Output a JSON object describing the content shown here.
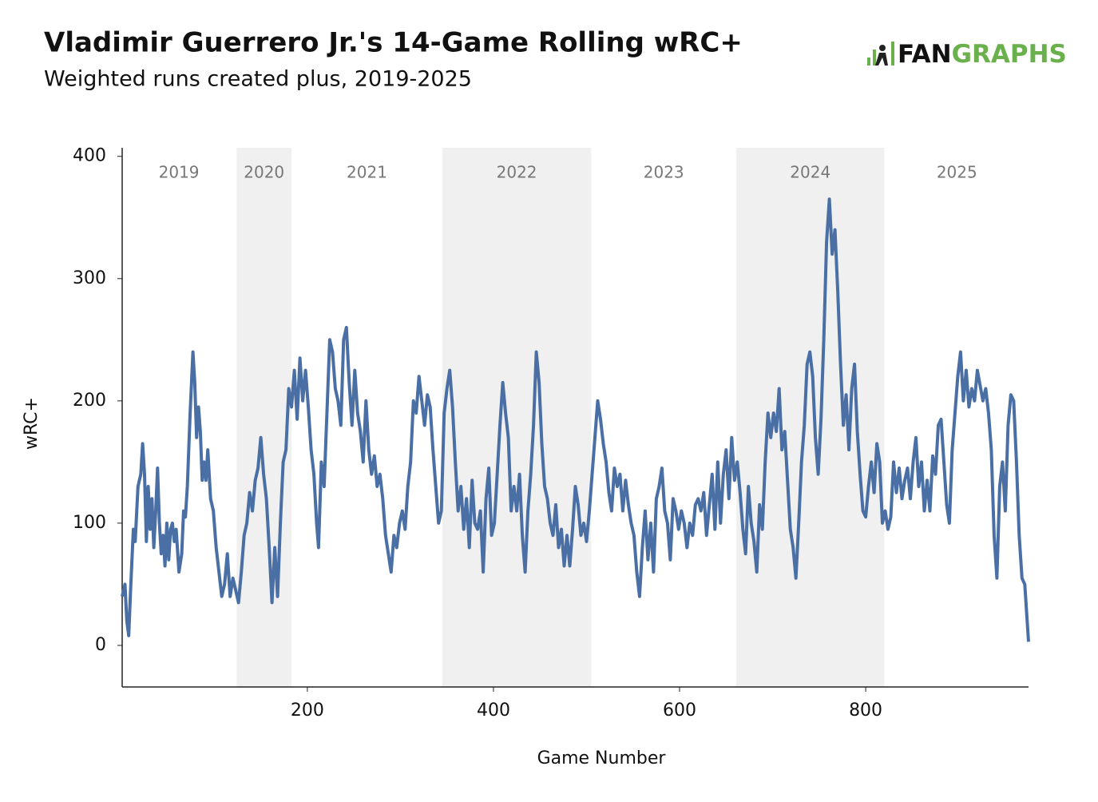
{
  "chart_data": {
    "type": "line",
    "title": "Vladimir Guerrero Jr.'s 14-Game Rolling wRC+",
    "subtitle": "Weighted runs created plus, 2019-2025",
    "logo": {
      "dark": "FAN",
      "green": "GRAPHS"
    },
    "x_label": "Game Number",
    "y_label": "wRC+",
    "xlim": [
      1,
      975
    ],
    "ylim": [
      -34,
      407
    ],
    "xticks": [
      200,
      400,
      600,
      800
    ],
    "yticks": [
      0,
      100,
      200,
      300,
      400
    ],
    "seasons": [
      {
        "label": "2019",
        "start": 1,
        "end": 123,
        "shaded": false
      },
      {
        "label": "2020",
        "start": 124,
        "end": 183,
        "shaded": true
      },
      {
        "label": "2021",
        "start": 184,
        "end": 344,
        "shaded": false
      },
      {
        "label": "2022",
        "start": 345,
        "end": 505,
        "shaded": true
      },
      {
        "label": "2023",
        "start": 506,
        "end": 660,
        "shaded": false
      },
      {
        "label": "2024",
        "start": 661,
        "end": 820,
        "shaded": true
      },
      {
        "label": "2025",
        "start": 821,
        "end": 975,
        "shaded": false
      }
    ],
    "x": [
      1,
      4,
      6,
      8,
      10,
      13,
      15,
      18,
      21,
      23,
      25,
      27,
      29,
      31,
      33,
      35,
      37,
      39,
      41,
      43,
      45,
      47,
      49,
      51,
      53,
      55,
      57,
      59,
      62,
      65,
      67,
      69,
      71,
      74,
      77,
      79,
      81,
      83,
      85,
      87,
      89,
      91,
      93,
      96,
      99,
      102,
      105,
      108,
      111,
      114,
      117,
      120,
      123,
      126,
      129,
      132,
      135,
      138,
      141,
      144,
      147,
      150,
      153,
      156,
      159,
      162,
      165,
      168,
      171,
      174,
      177,
      180,
      183,
      186,
      189,
      192,
      195,
      198,
      201,
      204,
      207,
      210,
      212,
      215,
      218,
      221,
      224,
      227,
      230,
      233,
      236,
      239,
      242,
      245,
      248,
      251,
      254,
      257,
      260,
      263,
      266,
      269,
      272,
      275,
      278,
      281,
      284,
      287,
      290,
      293,
      296,
      299,
      302,
      305,
      308,
      311,
      314,
      317,
      320,
      323,
      326,
      329,
      332,
      335,
      338,
      341,
      344,
      347,
      350,
      353,
      356,
      359,
      362,
      365,
      368,
      371,
      374,
      377,
      380,
      383,
      386,
      389,
      392,
      395,
      398,
      401,
      404,
      407,
      410,
      413,
      416,
      419,
      422,
      425,
      428,
      431,
      434,
      437,
      440,
      443,
      446,
      449,
      452,
      455,
      458,
      461,
      464,
      467,
      470,
      473,
      476,
      479,
      482,
      485,
      488,
      491,
      494,
      497,
      500,
      503,
      506,
      509,
      512,
      515,
      518,
      521,
      524,
      527,
      530,
      533,
      536,
      539,
      542,
      545,
      548,
      551,
      554,
      557,
      560,
      563,
      566,
      569,
      572,
      575,
      578,
      581,
      584,
      587,
      590,
      593,
      596,
      599,
      602,
      605,
      608,
      611,
      614,
      617,
      620,
      623,
      626,
      629,
      632,
      635,
      638,
      641,
      644,
      647,
      650,
      653,
      656,
      659,
      662,
      665,
      668,
      671,
      674,
      677,
      680,
      683,
      686,
      689,
      692,
      695,
      698,
      701,
      704,
      707,
      710,
      713,
      716,
      719,
      722,
      725,
      728,
      731,
      734,
      737,
      740,
      743,
      746,
      749,
      752,
      755,
      758,
      761,
      764,
      767,
      770,
      773,
      776,
      779,
      782,
      785,
      788,
      791,
      794,
      797,
      800,
      803,
      806,
      809,
      812,
      815,
      818,
      821,
      824,
      827,
      830,
      833,
      836,
      839,
      842,
      845,
      848,
      851,
      854,
      857,
      860,
      863,
      866,
      869,
      872,
      875,
      878,
      881,
      884,
      887,
      890,
      893,
      896,
      899,
      902,
      905,
      908,
      911,
      914,
      917,
      920,
      926,
      929,
      932,
      935,
      938,
      941,
      944,
      947,
      950,
      953,
      956,
      959,
      962,
      965,
      968,
      971,
      975
    ],
    "series": [
      {
        "name": "wRC+",
        "color": "#4a6fa5",
        "values": [
          40,
          50,
          20,
          8,
          45,
          95,
          85,
          130,
          140,
          165,
          140,
          85,
          130,
          95,
          120,
          80,
          110,
          145,
          100,
          75,
          90,
          65,
          100,
          70,
          95,
          100,
          85,
          95,
          60,
          75,
          110,
          105,
          130,
          190,
          240,
          215,
          170,
          195,
          175,
          135,
          150,
          135,
          160,
          120,
          110,
          80,
          60,
          40,
          50,
          75,
          40,
          55,
          45,
          35,
          60,
          90,
          100,
          125,
          110,
          135,
          145,
          170,
          140,
          120,
          80,
          35,
          80,
          40,
          100,
          150,
          160,
          210,
          195,
          225,
          185,
          235,
          200,
          225,
          195,
          160,
          140,
          100,
          80,
          150,
          130,
          190,
          250,
          240,
          210,
          200,
          180,
          250,
          260,
          215,
          180,
          225,
          190,
          175,
          150,
          200,
          160,
          140,
          155,
          130,
          140,
          120,
          90,
          75,
          60,
          90,
          80,
          100,
          110,
          95,
          130,
          150,
          200,
          190,
          220,
          200,
          180,
          205,
          195,
          160,
          130,
          100,
          110,
          190,
          210,
          225,
          195,
          150,
          110,
          130,
          95,
          120,
          80,
          135,
          100,
          95,
          110,
          60,
          120,
          145,
          90,
          100,
          140,
          180,
          215,
          190,
          170,
          110,
          130,
          110,
          140,
          90,
          60,
          110,
          140,
          180,
          240,
          215,
          165,
          130,
          120,
          100,
          90,
          115,
          80,
          95,
          65,
          90,
          65,
          95,
          130,
          115,
          90,
          100,
          85,
          110,
          140,
          170,
          200,
          185,
          165,
          150,
          125,
          110,
          145,
          130,
          140,
          110,
          135,
          115,
          100,
          90,
          60,
          40,
          80,
          110,
          70,
          100,
          60,
          120,
          130,
          145,
          110,
          100,
          70,
          120,
          110,
          95,
          110,
          100,
          80,
          100,
          90,
          115,
          120,
          110,
          125,
          90,
          115,
          140,
          95,
          150,
          100,
          140,
          160,
          120,
          170,
          135,
          150,
          125,
          95,
          75,
          130,
          100,
          85,
          60,
          115,
          95,
          150,
          190,
          170,
          190,
          175,
          210,
          160,
          175,
          135,
          95,
          80,
          55,
          100,
          150,
          180,
          230,
          240,
          220,
          170,
          140,
          185,
          250,
          330,
          365,
          320,
          340,
          290,
          230,
          180,
          205,
          160,
          210,
          230,
          175,
          140,
          110,
          105,
          130,
          150,
          125,
          165,
          150,
          100,
          110,
          95,
          105,
          150,
          125,
          145,
          120,
          135,
          145,
          120,
          150,
          170,
          130,
          150,
          110,
          135,
          110,
          155,
          140,
          180,
          185,
          150,
          115,
          100,
          160,
          190,
          220,
          240,
          200,
          225,
          195,
          210,
          200,
          225,
          200,
          210,
          190,
          160,
          90,
          55,
          130,
          150,
          110,
          180,
          205,
          200,
          150,
          90,
          55,
          50,
          3
        ]
      }
    ]
  }
}
